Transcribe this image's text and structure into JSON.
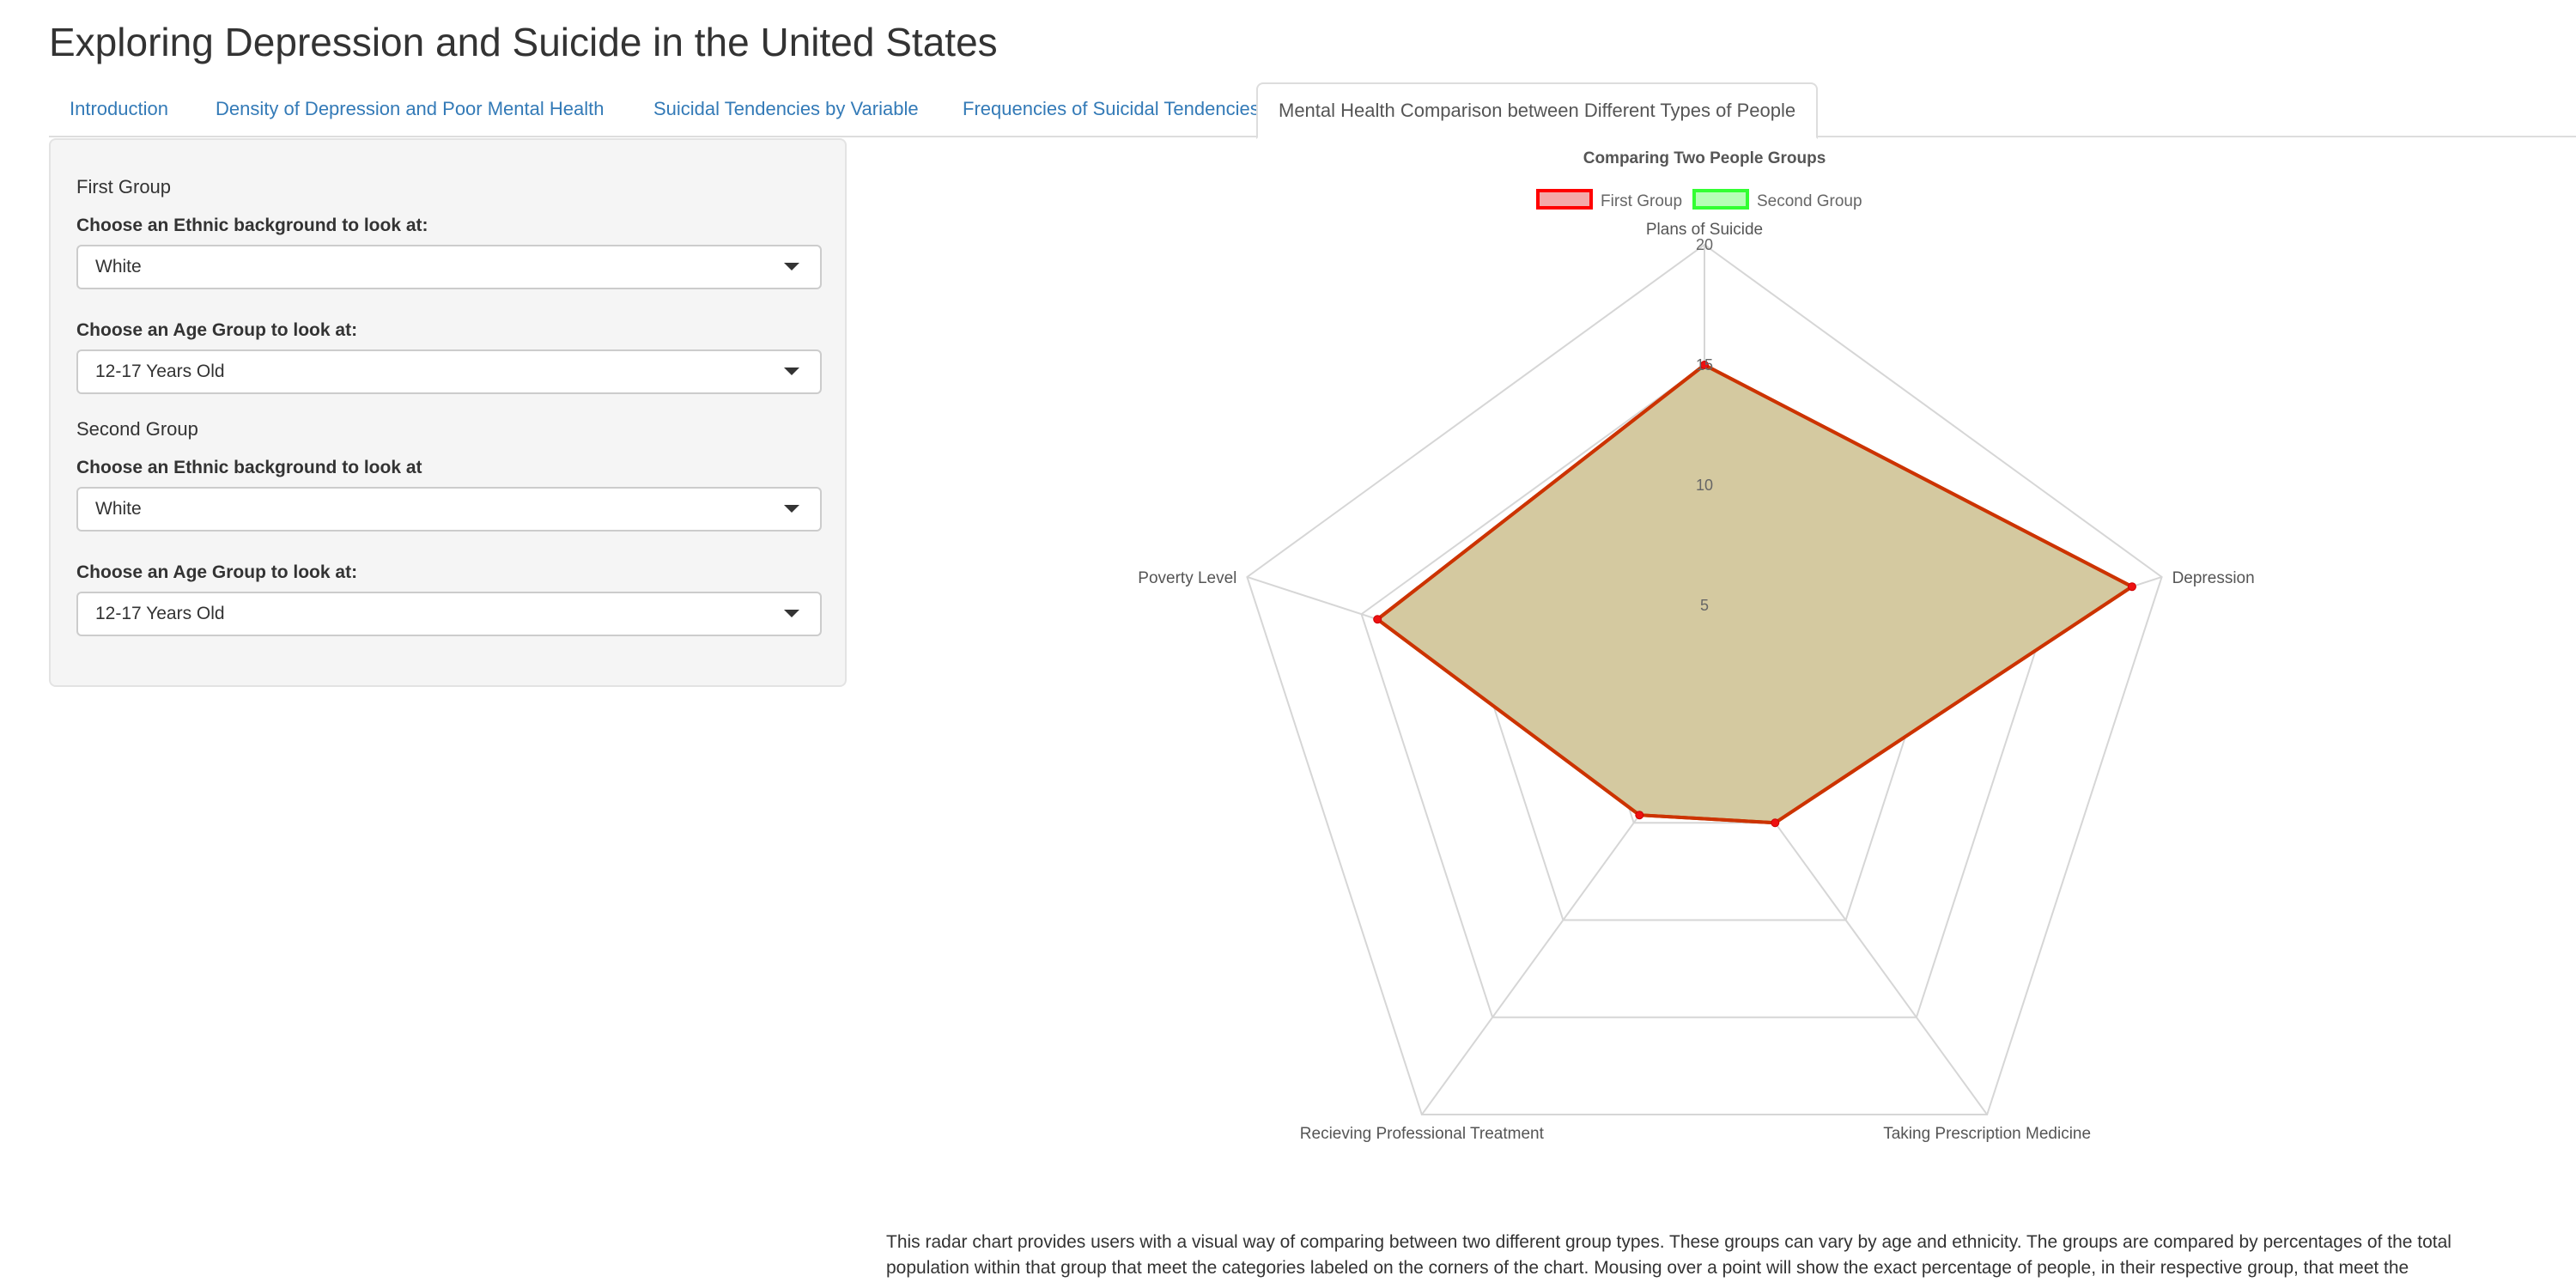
{
  "app": {
    "title": "Exploring Depression and Suicide in the United States"
  },
  "tabs": [
    {
      "label": "Introduction",
      "active": false
    },
    {
      "label": "Density of Depression and Poor Mental Health",
      "active": false
    },
    {
      "label": "Suicidal Tendencies by Variable",
      "active": false
    },
    {
      "label": "Frequencies of Suicidal Tendencies",
      "active": false
    },
    {
      "label": "Mental Health Comparison between Different Types of People",
      "active": true
    }
  ],
  "sidebar": {
    "first_group": {
      "heading": "First Group",
      "ethnic_label": "Choose an Ethnic background to look at:",
      "ethnic_value": "White",
      "age_label": "Choose an Age Group to look at:",
      "age_value": "12-17 Years Old"
    },
    "second_group": {
      "heading": "Second Group",
      "ethnic_label": "Choose an Ethnic background to look at",
      "ethnic_value": "White",
      "age_label": "Choose an Age Group to look at:",
      "age_value": "12-17 Years Old"
    }
  },
  "chart_data": {
    "type": "radar",
    "title": "Comparing Two People Groups",
    "axes": [
      "Plans of Suicide",
      "Depression",
      "Taking Prescription Medicine",
      "Recieving Professional Treatment",
      "Poverty Level"
    ],
    "r_ticks": [
      5,
      10,
      15,
      20
    ],
    "r_range": [
      0,
      20
    ],
    "grid": true,
    "legend_position": "top",
    "series": [
      {
        "name": "First Group",
        "values": [
          15,
          18.7,
          5.0,
          4.6,
          14.3
        ],
        "color": "#dd0000",
        "legend_fill": "#f4a9a9",
        "legend_border": "#ff0000"
      },
      {
        "name": "Second Group",
        "values": [
          15,
          18.7,
          5.0,
          4.6,
          14.3
        ],
        "color": "#33cc33",
        "legend_fill": "#b6ffb6",
        "legend_border": "#33ff33"
      }
    ],
    "overlap_fill": "#d4c9a0",
    "overlap_stroke": "#cc3300"
  },
  "description": {
    "text": "This radar chart provides users with a visual way of comparing between two different group types. These groups can vary by age and ethnicity. The groups are compared by percentages of the total population within that group that meet the categories labeled on the corners of the chart. Mousing over a point will show the exact percentage of people, in their respective group, that meet the"
  }
}
